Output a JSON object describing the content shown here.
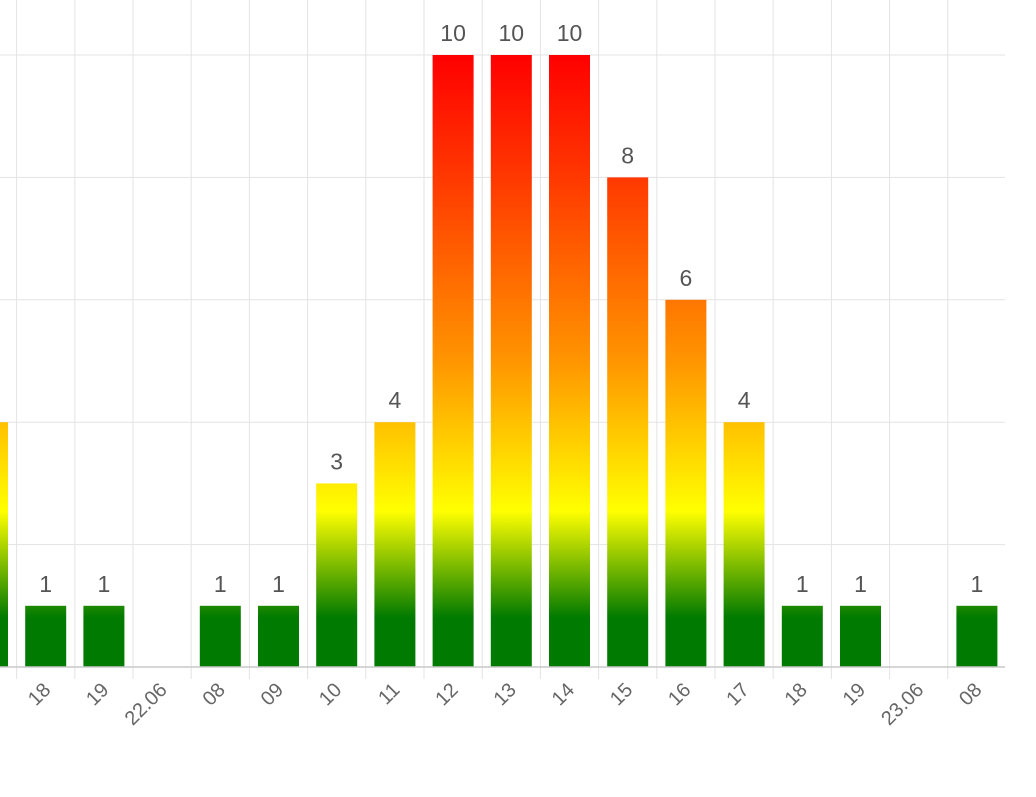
{
  "chart_data": {
    "type": "bar",
    "title": "",
    "xlabel": "",
    "ylabel": "",
    "ylim": [
      0,
      10
    ],
    "grid": true,
    "legend": "none",
    "colors": {
      "low": "#007a00",
      "mid": "#ffff00",
      "high": "#ff0000"
    },
    "categories": [
      "",
      "18",
      "19",
      "22.06",
      "08",
      "09",
      "10",
      "11",
      "12",
      "13",
      "14",
      "15",
      "16",
      "17",
      "18",
      "19",
      "23.06",
      "08"
    ],
    "values": [
      4,
      1,
      1,
      0,
      1,
      1,
      3,
      4,
      10,
      10,
      10,
      8,
      6,
      4,
      1,
      1,
      0,
      1
    ],
    "data_labels": [
      "",
      "1",
      "1",
      "",
      "1",
      "1",
      "3",
      "4",
      "10",
      "10",
      "10",
      "8",
      "6",
      "4",
      "1",
      "1",
      "",
      "1"
    ]
  }
}
